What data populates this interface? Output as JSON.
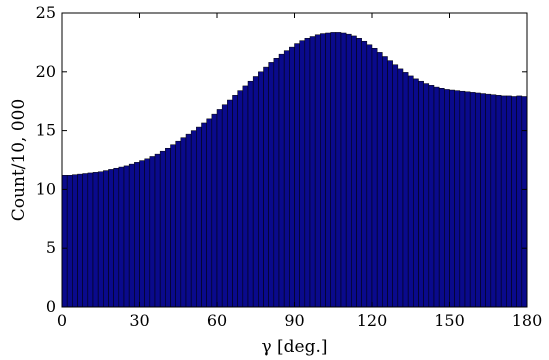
{
  "chart_data": {
    "type": "bar",
    "xlabel": "γ [deg.]",
    "ylabel": "Count/10, 000",
    "xlim": [
      0,
      180
    ],
    "ylim": [
      0,
      25
    ],
    "x_ticks": [
      "0",
      "30",
      "60",
      "90",
      "120",
      "150",
      "180"
    ],
    "y_ticks": [
      "0",
      "5",
      "10",
      "15",
      "20",
      "25"
    ],
    "grid": false,
    "bar_color": "#0a0a8c",
    "bar_edge_color": "#000000",
    "bin_width": 2,
    "x": [
      1,
      3,
      5,
      7,
      9,
      11,
      13,
      15,
      17,
      19,
      21,
      23,
      25,
      27,
      29,
      31,
      33,
      35,
      37,
      39,
      41,
      43,
      45,
      47,
      49,
      51,
      53,
      55,
      57,
      59,
      61,
      63,
      65,
      67,
      69,
      71,
      73,
      75,
      77,
      79,
      81,
      83,
      85,
      87,
      89,
      91,
      93,
      95,
      97,
      99,
      101,
      103,
      105,
      107,
      109,
      111,
      113,
      115,
      117,
      119,
      121,
      123,
      125,
      127,
      129,
      131,
      133,
      135,
      137,
      139,
      141,
      143,
      145,
      147,
      149,
      151,
      153,
      155,
      157,
      159,
      161,
      163,
      165,
      167,
      169,
      171,
      173,
      175,
      177,
      179
    ],
    "values": [
      11.2,
      11.2,
      11.25,
      11.3,
      11.35,
      11.4,
      11.45,
      11.5,
      11.6,
      11.7,
      11.8,
      11.9,
      12.0,
      12.15,
      12.3,
      12.45,
      12.6,
      12.8,
      13.0,
      13.25,
      13.5,
      13.8,
      14.1,
      14.4,
      14.7,
      15.0,
      15.3,
      15.65,
      16.0,
      16.4,
      16.8,
      17.2,
      17.6,
      18.0,
      18.4,
      18.8,
      19.2,
      19.6,
      20.0,
      20.4,
      20.8,
      21.15,
      21.5,
      21.8,
      22.1,
      22.4,
      22.65,
      22.85,
      23.0,
      23.15,
      23.25,
      23.3,
      23.35,
      23.35,
      23.3,
      23.2,
      23.05,
      22.85,
      22.6,
      22.3,
      22.0,
      21.65,
      21.3,
      20.95,
      20.6,
      20.25,
      19.95,
      19.65,
      19.4,
      19.2,
      19.0,
      18.85,
      18.7,
      18.6,
      18.5,
      18.45,
      18.4,
      18.35,
      18.3,
      18.25,
      18.2,
      18.15,
      18.1,
      18.05,
      18.0,
      17.95,
      17.95,
      17.9,
      17.95,
      17.9
    ]
  }
}
